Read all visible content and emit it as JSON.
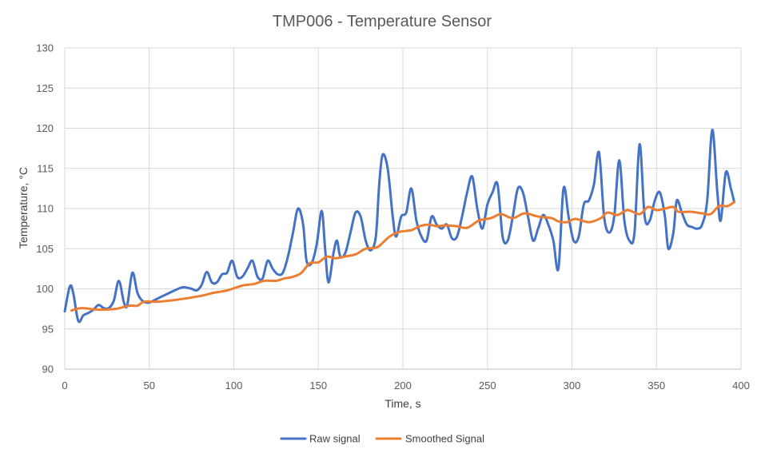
{
  "chart_data": {
    "type": "line",
    "title": "TMP006 - Temperature Sensor",
    "xlabel": "Time, s",
    "ylabel": "Temperature, °C",
    "xlim": [
      0,
      400
    ],
    "ylim": [
      90,
      130
    ],
    "x_ticks": [
      "0",
      "50",
      "100",
      "150",
      "200",
      "250",
      "300",
      "350",
      "400"
    ],
    "y_ticks": [
      "90",
      "95",
      "100",
      "105",
      "110",
      "115",
      "120",
      "125",
      "130"
    ],
    "grid": true,
    "legend_position": "bottom",
    "series": [
      {
        "name": "Raw signal",
        "color": "#4472C4",
        "points": [
          [
            0,
            97.2
          ],
          [
            3,
            100.3
          ],
          [
            5,
            99.5
          ],
          [
            8,
            96.0
          ],
          [
            11,
            96.7
          ],
          [
            14,
            97.0
          ],
          [
            17,
            97.4
          ],
          [
            20,
            98.0
          ],
          [
            23,
            97.6
          ],
          [
            26,
            97.6
          ],
          [
            29,
            98.5
          ],
          [
            32,
            101.0
          ],
          [
            35,
            98.3
          ],
          [
            37,
            98.0
          ],
          [
            40,
            102.0
          ],
          [
            43,
            99.5
          ],
          [
            46,
            98.5
          ],
          [
            50,
            98.3
          ],
          [
            55,
            98.8
          ],
          [
            60,
            99.3
          ],
          [
            65,
            99.8
          ],
          [
            70,
            100.2
          ],
          [
            75,
            100.0
          ],
          [
            78,
            99.8
          ],
          [
            81,
            100.5
          ],
          [
            84,
            102.1
          ],
          [
            87,
            100.8
          ],
          [
            90,
            100.8
          ],
          [
            93,
            101.8
          ],
          [
            96,
            102.0
          ],
          [
            99,
            103.5
          ],
          [
            102,
            101.5
          ],
          [
            105,
            101.5
          ],
          [
            108,
            102.5
          ],
          [
            111,
            103.5
          ],
          [
            114,
            101.5
          ],
          [
            117,
            101.3
          ],
          [
            120,
            103.5
          ],
          [
            123,
            102.5
          ],
          [
            126,
            101.8
          ],
          [
            129,
            102.0
          ],
          [
            132,
            104.0
          ],
          [
            135,
            107.0
          ],
          [
            138,
            110.0
          ],
          [
            141,
            108.0
          ],
          [
            143,
            103.5
          ],
          [
            146,
            103.2
          ],
          [
            149,
            105.5
          ],
          [
            152,
            109.7
          ],
          [
            154,
            105.0
          ],
          [
            156,
            100.8
          ],
          [
            159,
            104.5
          ],
          [
            161,
            106.0
          ],
          [
            163,
            104.0
          ],
          [
            166,
            104.5
          ],
          [
            169,
            107.0
          ],
          [
            172,
            109.5
          ],
          [
            175,
            109.0
          ],
          [
            178,
            106.0
          ],
          [
            181,
            104.8
          ],
          [
            184,
            106.5
          ],
          [
            186,
            113.0
          ],
          [
            188,
            116.7
          ],
          [
            191,
            115.0
          ],
          [
            194,
            109.0
          ],
          [
            196,
            106.5
          ],
          [
            199,
            109.0
          ],
          [
            202,
            109.5
          ],
          [
            205,
            112.5
          ],
          [
            208,
            108.5
          ],
          [
            211,
            106.5
          ],
          [
            214,
            106.0
          ],
          [
            217,
            109.0
          ],
          [
            220,
            108.0
          ],
          [
            223,
            107.5
          ],
          [
            226,
            108.0
          ],
          [
            229,
            106.3
          ],
          [
            232,
            106.5
          ],
          [
            235,
            109.0
          ],
          [
            238,
            112.0
          ],
          [
            241,
            114.0
          ],
          [
            244,
            110.0
          ],
          [
            247,
            107.5
          ],
          [
            250,
            110.5
          ],
          [
            253,
            112.0
          ],
          [
            256,
            113.0
          ],
          [
            259,
            106.5
          ],
          [
            262,
            106.0
          ],
          [
            265,
            109.0
          ],
          [
            268,
            112.5
          ],
          [
            271,
            112.0
          ],
          [
            274,
            109.0
          ],
          [
            277,
            106.0
          ],
          [
            280,
            107.5
          ],
          [
            283,
            109.2
          ],
          [
            286,
            108.0
          ],
          [
            289,
            106.0
          ],
          [
            292,
            102.5
          ],
          [
            295,
            112.5
          ],
          [
            298,
            109.0
          ],
          [
            301,
            106.0
          ],
          [
            304,
            106.5
          ],
          [
            307,
            110.5
          ],
          [
            310,
            111.0
          ],
          [
            313,
            113.0
          ],
          [
            316,
            117.0
          ],
          [
            319,
            109.0
          ],
          [
            322,
            107.0
          ],
          [
            325,
            109.0
          ],
          [
            328,
            116.0
          ],
          [
            331,
            108.5
          ],
          [
            334,
            106.0
          ],
          [
            337,
            107.0
          ],
          [
            340,
            118.0
          ],
          [
            343,
            109.0
          ],
          [
            346,
            108.5
          ],
          [
            349,
            111.0
          ],
          [
            352,
            112.0
          ],
          [
            355,
            109.0
          ],
          [
            357,
            105.0
          ],
          [
            360,
            107.0
          ],
          [
            362,
            111.0
          ],
          [
            365,
            109.5
          ],
          [
            368,
            108.0
          ],
          [
            371,
            107.7
          ],
          [
            374,
            107.5
          ],
          [
            377,
            108.0
          ],
          [
            380,
            111.0
          ],
          [
            383,
            119.8
          ],
          [
            386,
            112.0
          ],
          [
            388,
            108.5
          ],
          [
            391,
            114.5
          ],
          [
            394,
            112.5
          ],
          [
            396,
            110.8
          ]
        ]
      },
      {
        "name": "Smoothed Signal",
        "color": "#ED7D31",
        "points": [
          [
            4,
            97.3
          ],
          [
            10,
            97.6
          ],
          [
            20,
            97.4
          ],
          [
            30,
            97.5
          ],
          [
            38,
            97.9
          ],
          [
            43,
            97.9
          ],
          [
            47,
            98.4
          ],
          [
            55,
            98.4
          ],
          [
            65,
            98.6
          ],
          [
            80,
            99.1
          ],
          [
            88,
            99.5
          ],
          [
            96,
            99.8
          ],
          [
            105,
            100.4
          ],
          [
            112,
            100.6
          ],
          [
            118,
            101.0
          ],
          [
            125,
            101.0
          ],
          [
            130,
            101.3
          ],
          [
            135,
            101.5
          ],
          [
            140,
            102.0
          ],
          [
            145,
            103.2
          ],
          [
            150,
            103.3
          ],
          [
            155,
            104.0
          ],
          [
            160,
            103.8
          ],
          [
            165,
            104.0
          ],
          [
            172,
            104.3
          ],
          [
            178,
            105.0
          ],
          [
            185,
            105.2
          ],
          [
            192,
            106.5
          ],
          [
            198,
            107.1
          ],
          [
            205,
            107.3
          ],
          [
            210,
            107.8
          ],
          [
            215,
            108.0
          ],
          [
            220,
            107.8
          ],
          [
            225,
            107.9
          ],
          [
            232,
            107.8
          ],
          [
            238,
            107.6
          ],
          [
            245,
            108.5
          ],
          [
            252,
            108.8
          ],
          [
            258,
            109.3
          ],
          [
            265,
            108.8
          ],
          [
            272,
            109.4
          ],
          [
            280,
            109.0
          ],
          [
            288,
            108.8
          ],
          [
            292,
            108.4
          ],
          [
            297,
            108.3
          ],
          [
            302,
            108.7
          ],
          [
            310,
            108.3
          ],
          [
            317,
            108.8
          ],
          [
            321,
            109.5
          ],
          [
            327,
            109.2
          ],
          [
            333,
            109.8
          ],
          [
            340,
            109.3
          ],
          [
            345,
            110.2
          ],
          [
            350,
            109.8
          ],
          [
            355,
            110.0
          ],
          [
            360,
            110.2
          ],
          [
            363,
            109.6
          ],
          [
            370,
            109.6
          ],
          [
            377,
            109.4
          ],
          [
            382,
            109.3
          ],
          [
            387,
            110.3
          ],
          [
            392,
            110.3
          ],
          [
            396,
            110.8
          ]
        ]
      }
    ]
  }
}
